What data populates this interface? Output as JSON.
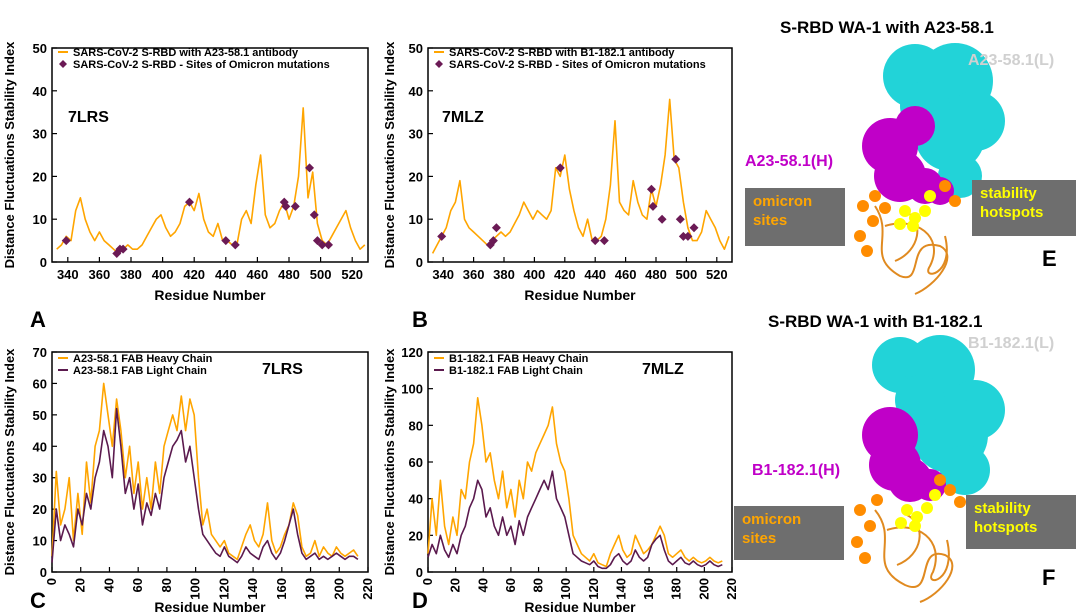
{
  "colors": {
    "orange": "#FFA500",
    "purple": "#5B1A4E",
    "marker": "#6B1A55",
    "cyan": "#22D3D8",
    "magenta": "#C000C8",
    "yellow": "#FFFF00",
    "box": "#6E6E6E"
  },
  "chart_data": [
    {
      "id": "A",
      "type": "line",
      "title": "7LRS",
      "xlabel": "Residue Number",
      "ylabel": "Distance Fluctuations Stability Index",
      "xlim": [
        330,
        530
      ],
      "ylim": [
        0,
        50
      ],
      "xticks": [
        340,
        360,
        380,
        400,
        420,
        440,
        460,
        480,
        500,
        520
      ],
      "yticks": [
        0,
        10,
        20,
        30,
        40,
        50
      ],
      "legend": "top-left",
      "series": [
        {
          "name": "SARS-CoV-2 S-RBD with A23-58.1 antibody",
          "kind": "line",
          "x": [
            333,
            336,
            339,
            342,
            345,
            348,
            351,
            354,
            357,
            360,
            363,
            366,
            369,
            372,
            375,
            378,
            381,
            384,
            387,
            390,
            393,
            396,
            399,
            402,
            405,
            408,
            411,
            414,
            417,
            420,
            423,
            426,
            429,
            432,
            435,
            438,
            441,
            444,
            447,
            450,
            453,
            456,
            459,
            462,
            465,
            468,
            471,
            474,
            477,
            480,
            483,
            486,
            489,
            492,
            495,
            498,
            501,
            504,
            507,
            510,
            513,
            516,
            519,
            522,
            525,
            528
          ],
          "y": [
            3,
            4,
            6,
            5,
            12,
            15,
            10,
            7,
            5,
            7,
            5,
            4,
            3,
            2,
            3,
            4,
            3,
            3,
            4,
            6,
            8,
            10,
            11,
            8,
            6,
            7,
            9,
            13,
            14,
            12,
            16,
            10,
            7,
            6,
            9,
            5,
            5,
            4,
            4,
            10,
            12,
            9,
            18,
            25,
            11,
            8,
            9,
            12,
            14,
            10,
            13,
            20,
            36,
            15,
            21,
            9,
            5,
            4,
            6,
            8,
            10,
            12,
            8,
            5,
            3,
            4
          ]
        },
        {
          "name": "SARS-CoV-2 S-RBD - Sites of  Omicron mutations",
          "kind": "marker",
          "x": [
            339,
            371,
            373,
            375,
            417,
            440,
            446,
            477,
            478,
            484,
            493,
            496,
            498,
            501,
            505
          ],
          "y": [
            5,
            2,
            3,
            3,
            14,
            5,
            4,
            14,
            13,
            13,
            22,
            11,
            5,
            4,
            4
          ]
        }
      ]
    },
    {
      "id": "B",
      "type": "line",
      "title": "7MLZ",
      "xlabel": "Residue Number",
      "ylabel": "Distance Fluctuations Stability Index",
      "xlim": [
        330,
        530
      ],
      "ylim": [
        0,
        50
      ],
      "xticks": [
        340,
        360,
        380,
        400,
        420,
        440,
        460,
        480,
        500,
        520
      ],
      "yticks": [
        0,
        10,
        20,
        30,
        40,
        50
      ],
      "legend": "top-left",
      "series": [
        {
          "name": "SARS-CoV-2 S-RBD with B1-182.1 antibody",
          "kind": "line",
          "x": [
            333,
            336,
            339,
            342,
            345,
            348,
            351,
            354,
            357,
            360,
            363,
            366,
            369,
            372,
            375,
            378,
            381,
            384,
            387,
            390,
            393,
            396,
            399,
            402,
            405,
            408,
            411,
            414,
            417,
            420,
            423,
            426,
            429,
            432,
            435,
            438,
            441,
            444,
            447,
            450,
            453,
            456,
            459,
            462,
            465,
            468,
            471,
            474,
            477,
            480,
            483,
            486,
            489,
            492,
            495,
            498,
            501,
            504,
            507,
            510,
            513,
            516,
            519,
            522,
            525,
            528
          ],
          "y": [
            2,
            4,
            6,
            8,
            12,
            14,
            19,
            10,
            8,
            7,
            6,
            5,
            4,
            5,
            6,
            7,
            6,
            7,
            9,
            11,
            14,
            12,
            10,
            12,
            11,
            10,
            12,
            22,
            20,
            25,
            17,
            12,
            8,
            6,
            10,
            5,
            5,
            6,
            10,
            18,
            33,
            14,
            12,
            11,
            19,
            14,
            11,
            10,
            17,
            13,
            18,
            25,
            38,
            24,
            22,
            14,
            8,
            5,
            5,
            7,
            12,
            10,
            8,
            5,
            3,
            6
          ]
        },
        {
          "name": "SARS-CoV-2 S-RBD - Sites of  Omicron mutations",
          "kind": "marker",
          "x": [
            339,
            371,
            373,
            375,
            417,
            440,
            446,
            477,
            478,
            484,
            493,
            496,
            498,
            501,
            505
          ],
          "y": [
            6,
            4,
            5,
            8,
            22,
            5,
            5,
            17,
            13,
            10,
            24,
            10,
            6,
            6,
            8
          ]
        }
      ]
    },
    {
      "id": "C",
      "type": "line",
      "title": "7LRS",
      "xlabel": "Residue Number",
      "ylabel": "Distance Fluctuations Stability Index",
      "xlim": [
        0,
        220
      ],
      "ylim": [
        0,
        70
      ],
      "xticks": [
        0,
        20,
        40,
        60,
        80,
        100,
        120,
        140,
        160,
        180,
        200,
        220
      ],
      "yticks": [
        0,
        10,
        20,
        30,
        40,
        50,
        60,
        70
      ],
      "legend": "top-left",
      "series": [
        {
          "name": "A23-58.1 FAB Heavy Chain",
          "kind": "line",
          "color": "orange",
          "x": [
            0,
            3,
            6,
            9,
            12,
            15,
            18,
            21,
            24,
            27,
            30,
            33,
            36,
            39,
            42,
            45,
            48,
            51,
            54,
            57,
            60,
            63,
            66,
            69,
            72,
            75,
            78,
            81,
            84,
            87,
            90,
            93,
            96,
            99,
            102,
            105,
            108,
            111,
            114,
            117,
            120,
            123,
            126,
            129,
            132,
            135,
            138,
            141,
            144,
            147,
            150,
            153,
            156,
            159,
            162,
            165,
            168,
            171,
            174,
            177,
            180,
            183,
            186,
            189,
            192,
            195,
            198,
            201,
            204,
            207,
            210,
            213
          ],
          "y": [
            5,
            32,
            15,
            20,
            30,
            10,
            25,
            12,
            35,
            22,
            40,
            45,
            60,
            50,
            40,
            55,
            45,
            30,
            40,
            25,
            35,
            20,
            30,
            20,
            35,
            25,
            40,
            45,
            50,
            45,
            56,
            45,
            55,
            50,
            30,
            15,
            20,
            12,
            10,
            8,
            10,
            6,
            5,
            4,
            8,
            12,
            15,
            10,
            8,
            12,
            22,
            10,
            6,
            8,
            12,
            15,
            22,
            18,
            8,
            5,
            6,
            10,
            5,
            8,
            6,
            5,
            8,
            6,
            5,
            6,
            7,
            5
          ]
        },
        {
          "name": "A23-58.1 FAB Light Chain",
          "kind": "line",
          "color": "purple",
          "x": [
            0,
            3,
            6,
            9,
            12,
            15,
            18,
            21,
            24,
            27,
            30,
            33,
            36,
            39,
            42,
            45,
            48,
            51,
            54,
            57,
            60,
            63,
            66,
            69,
            72,
            75,
            78,
            81,
            84,
            87,
            90,
            93,
            96,
            99,
            102,
            105,
            108,
            111,
            114,
            117,
            120,
            123,
            126,
            129,
            132,
            135,
            138,
            141,
            144,
            147,
            150,
            153,
            156,
            159,
            162,
            165,
            168,
            171,
            174,
            177,
            180,
            183,
            186,
            189,
            192,
            195,
            198,
            201,
            204,
            207,
            210,
            213
          ],
          "y": [
            3,
            20,
            10,
            15,
            12,
            8,
            20,
            15,
            25,
            20,
            30,
            35,
            45,
            40,
            30,
            52,
            40,
            25,
            30,
            20,
            28,
            15,
            22,
            18,
            25,
            20,
            30,
            35,
            40,
            42,
            45,
            35,
            40,
            30,
            20,
            12,
            10,
            8,
            6,
            5,
            8,
            5,
            4,
            3,
            5,
            8,
            6,
            5,
            4,
            8,
            10,
            6,
            4,
            6,
            10,
            15,
            20,
            12,
            6,
            4,
            5,
            6,
            4,
            5,
            4,
            5,
            6,
            5,
            4,
            5,
            5,
            4
          ]
        }
      ]
    },
    {
      "id": "D",
      "type": "line",
      "title": "7MLZ",
      "xlabel": "Residue Number",
      "ylabel": "Distance Fluctuations Stability Index",
      "xlim": [
        0,
        220
      ],
      "ylim": [
        0,
        120
      ],
      "xticks": [
        0,
        20,
        40,
        60,
        80,
        100,
        120,
        140,
        160,
        180,
        200,
        220
      ],
      "yticks": [
        0,
        20,
        40,
        60,
        80,
        100,
        120
      ],
      "legend": "top-left",
      "series": [
        {
          "name": "B1-182.1 FAB Heavy Chain",
          "kind": "line",
          "color": "orange",
          "x": [
            0,
            3,
            6,
            9,
            12,
            15,
            18,
            21,
            24,
            27,
            30,
            33,
            36,
            39,
            42,
            45,
            48,
            51,
            54,
            57,
            60,
            63,
            66,
            69,
            72,
            75,
            78,
            81,
            84,
            87,
            90,
            93,
            96,
            99,
            102,
            105,
            108,
            111,
            114,
            117,
            120,
            123,
            126,
            129,
            132,
            135,
            138,
            141,
            144,
            147,
            150,
            153,
            156,
            159,
            162,
            165,
            168,
            171,
            174,
            177,
            180,
            183,
            186,
            189,
            192,
            195,
            198,
            201,
            204,
            207,
            210,
            213
          ],
          "y": [
            10,
            40,
            20,
            50,
            25,
            15,
            30,
            20,
            45,
            40,
            60,
            70,
            95,
            80,
            60,
            65,
            50,
            40,
            55,
            35,
            45,
            30,
            50,
            40,
            60,
            55,
            65,
            70,
            75,
            80,
            90,
            70,
            60,
            55,
            40,
            20,
            15,
            10,
            8,
            6,
            10,
            5,
            4,
            3,
            10,
            15,
            20,
            12,
            8,
            10,
            20,
            15,
            10,
            12,
            15,
            20,
            25,
            20,
            10,
            8,
            10,
            12,
            8,
            6,
            8,
            6,
            5,
            6,
            8,
            6,
            5,
            6
          ]
        },
        {
          "name": "B1-182.1 FAB Light Chain",
          "kind": "line",
          "color": "purple",
          "x": [
            0,
            3,
            6,
            9,
            12,
            15,
            18,
            21,
            24,
            27,
            30,
            33,
            36,
            39,
            42,
            45,
            48,
            51,
            54,
            57,
            60,
            63,
            66,
            69,
            72,
            75,
            78,
            81,
            84,
            87,
            90,
            93,
            96,
            99,
            102,
            105,
            108,
            111,
            114,
            117,
            120,
            123,
            126,
            129,
            132,
            135,
            138,
            141,
            144,
            147,
            150,
            153,
            156,
            159,
            162,
            165,
            168,
            171,
            174,
            177,
            180,
            183,
            186,
            189,
            192,
            195,
            198,
            201,
            204,
            207,
            210,
            213
          ],
          "y": [
            8,
            15,
            10,
            20,
            12,
            8,
            15,
            10,
            20,
            25,
            35,
            40,
            50,
            45,
            30,
            35,
            25,
            20,
            30,
            20,
            25,
            15,
            28,
            20,
            30,
            35,
            40,
            45,
            50,
            45,
            55,
            40,
            35,
            30,
            20,
            10,
            8,
            6,
            5,
            4,
            6,
            3,
            2,
            2,
            4,
            8,
            10,
            6,
            4,
            6,
            12,
            8,
            6,
            8,
            15,
            18,
            20,
            12,
            6,
            4,
            6,
            8,
            5,
            4,
            6,
            4,
            3,
            4,
            6,
            4,
            3,
            4
          ]
        }
      ]
    }
  ],
  "panel_letters": [
    "A",
    "B",
    "C",
    "D",
    "E",
    "F"
  ],
  "molecules": [
    {
      "title": "S-RBD WA-1 with A23-58.1",
      "light": "A23-58.1(L)",
      "heavy": "A23-58.1(H)",
      "omicron": "omicron sites",
      "stability": "stability hotspots"
    },
    {
      "title": "S-RBD WA-1 with B1-182.1",
      "light": "B1-182.1(L)",
      "heavy": "B1-182.1(H)",
      "omicron": "omicron sites",
      "stability": "stability hotspots"
    }
  ]
}
